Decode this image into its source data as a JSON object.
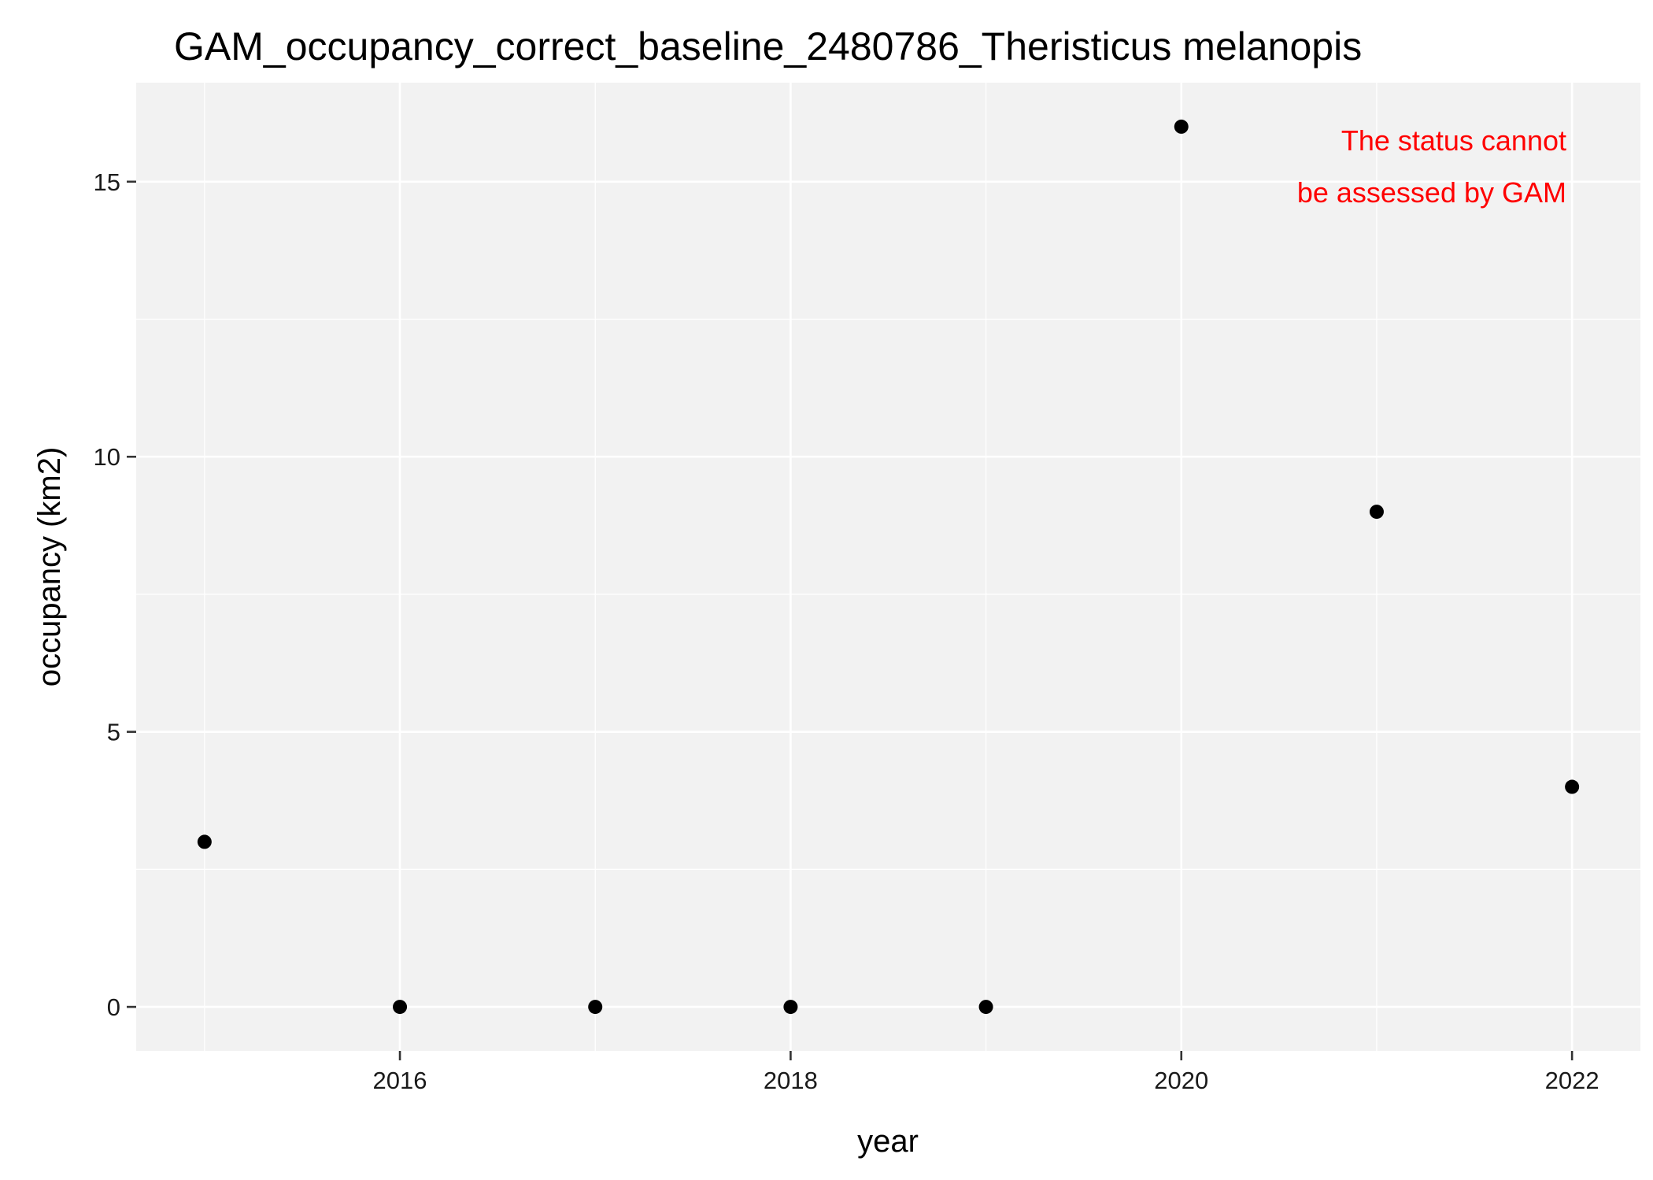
{
  "chart_data": {
    "type": "scatter",
    "title": "GAM_occupancy_correct_baseline_2480786_Theristicus melanopis",
    "xlabel": "year",
    "ylabel": "occupancy (km2)",
    "x": [
      2015,
      2016,
      2017,
      2018,
      2019,
      2020,
      2021,
      2022
    ],
    "y": [
      3,
      0,
      0,
      0,
      0,
      16,
      9,
      4
    ],
    "xlim": [
      2014.65,
      2022.35
    ],
    "ylim": [
      -0.8,
      16.8
    ],
    "x_ticks": [
      2016,
      2018,
      2020,
      2022
    ],
    "y_ticks": [
      0,
      5,
      10,
      15
    ],
    "x_tick_labels": [
      "2016",
      "2018",
      "2020",
      "2022"
    ],
    "y_tick_labels": [
      "0",
      "5",
      "10",
      "15"
    ],
    "grid": true,
    "legend": "none",
    "annotation": {
      "lines": [
        "The status cannot",
        "be assessed by GAM"
      ],
      "color": "#ff0000",
      "placement": "top-right"
    },
    "colors": {
      "panel_background": "#f2f2f2",
      "grid": "#ffffff",
      "points": "#000000"
    }
  }
}
